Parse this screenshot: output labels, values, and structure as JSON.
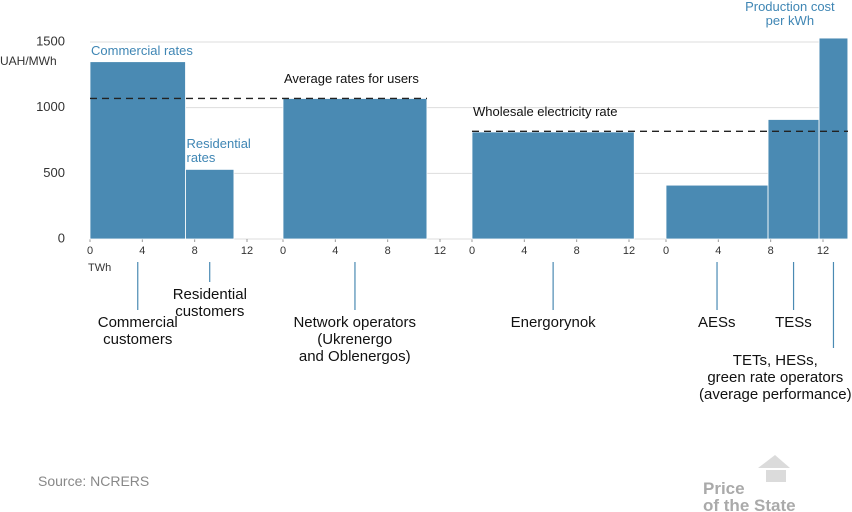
{
  "chart_data": {
    "type": "mekko",
    "y_label": "UAH/MWh",
    "x_label": "TWh",
    "ylim": [
      0,
      1500
    ],
    "yticks": [
      0,
      500,
      1000,
      1500
    ],
    "grid": true,
    "color": "#4a8ab3",
    "panels": [
      {
        "xlim": [
          0,
          12
        ],
        "xticks": [
          0,
          4,
          8,
          12
        ],
        "bars": [
          {
            "x": [
              0,
              7.3
            ],
            "value": 1350,
            "label": "Commercial\ncustomers",
            "note": "Commercial rates"
          },
          {
            "x": [
              7.3,
              11
            ],
            "value": 530,
            "label": "Residential\ncustomers",
            "note": "Residential\nrates"
          }
        ]
      },
      {
        "xlim": [
          0,
          12
        ],
        "xticks": [
          0,
          4,
          8,
          12
        ],
        "bars": [
          {
            "x": [
              0,
              11
            ],
            "value": 1070,
            "label": "Network operators\n(Ukrenergo\nand Oblenergos)"
          }
        ]
      },
      {
        "xlim": [
          0,
          12
        ],
        "xticks": [
          0,
          4,
          8,
          12
        ],
        "bars": [
          {
            "x": [
              0,
              12.4
            ],
            "value": 815,
            "label": "Energorynok"
          }
        ]
      },
      {
        "xlim": [
          0,
          12
        ],
        "xticks": [
          0,
          4,
          8,
          12
        ],
        "bars": [
          {
            "x": [
              0,
              7.8
            ],
            "value": 410,
            "label": "AESs"
          },
          {
            "x": [
              7.8,
              11.7
            ],
            "value": 910,
            "label": "TESs"
          },
          {
            "x": [
              11.7,
              13.9
            ],
            "value": 1530,
            "label": "TETs, HESs,\ngreen rate operators\n(average performance)",
            "note": "Production cost\nper kWh"
          }
        ]
      }
    ],
    "reference_lines": [
      {
        "label": "Average rates for users",
        "value": 1070
      },
      {
        "label": "Wholesale electricity rate",
        "value": 820
      }
    ]
  },
  "source": "Source: NCRERS",
  "brand": "Price\nof the State"
}
